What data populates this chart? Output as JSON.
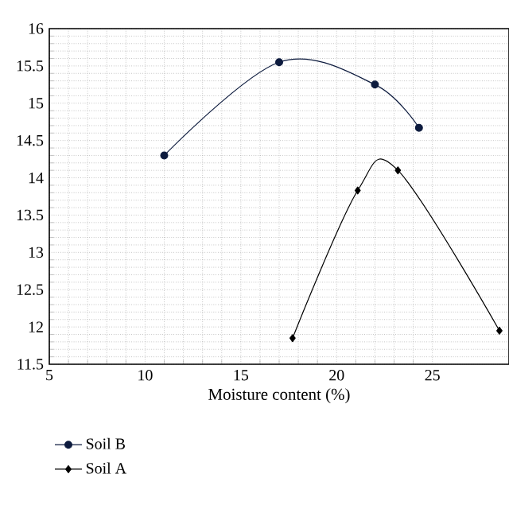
{
  "chart_data": {
    "type": "line",
    "xlabel": "Moisture content (%)",
    "xlim": [
      5,
      29
    ],
    "xticks": [
      5,
      10,
      15,
      20,
      25
    ],
    "ylim": [
      11.5,
      16
    ],
    "yticks": [
      11.5,
      12,
      12.5,
      13,
      13.5,
      14,
      14.5,
      15,
      15.5,
      16
    ],
    "grid": true,
    "legend": "bottom",
    "line_style": "solid",
    "series": [
      {
        "name": "Soil B",
        "color": "#0d1b3e",
        "marker": "circle",
        "x": [
          11,
          17,
          22,
          24.3
        ],
        "values": [
          14.3,
          15.55,
          15.25,
          14.67
        ]
      },
      {
        "name": "Soil A",
        "color": "#000000",
        "marker": "diamond",
        "x": [
          17.7,
          21.1,
          23.2,
          28.5
        ],
        "values": [
          11.85,
          13.83,
          14.1,
          11.95
        ]
      }
    ]
  }
}
